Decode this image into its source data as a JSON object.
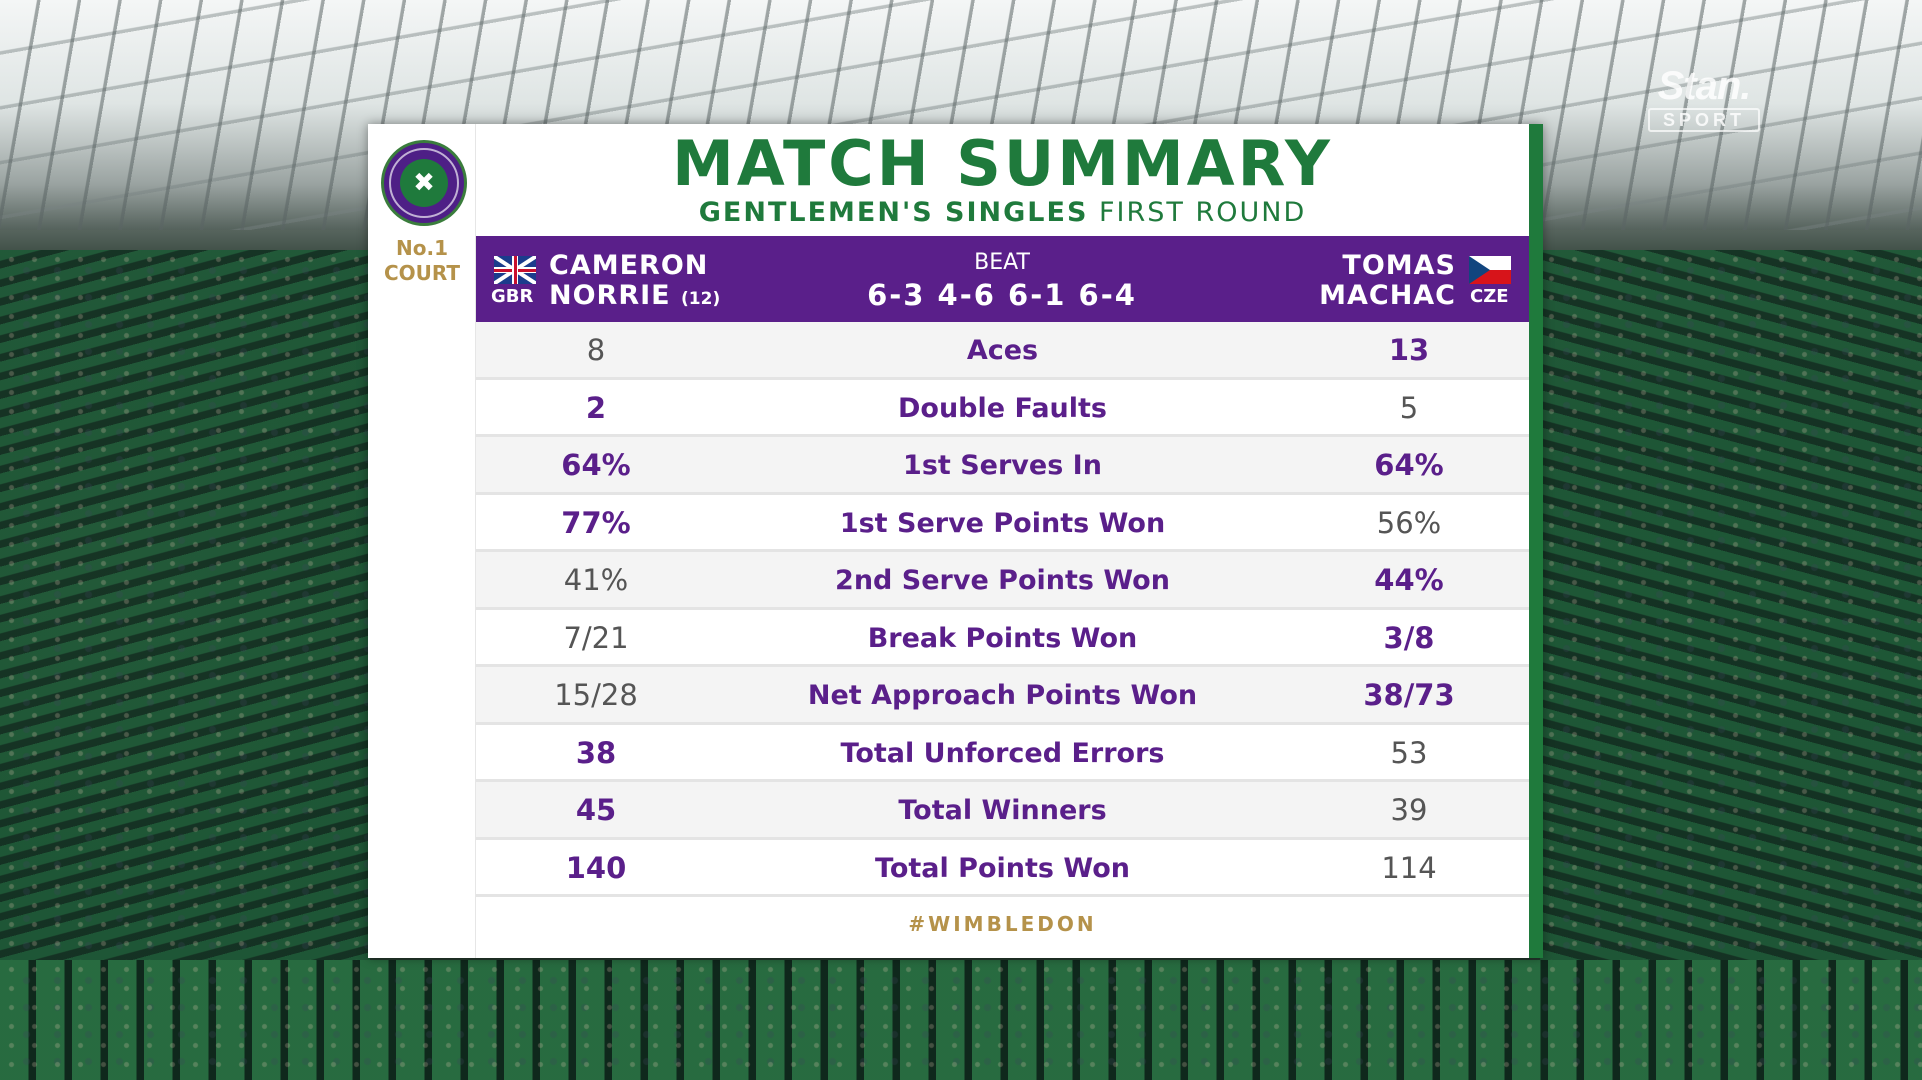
{
  "broadcaster": {
    "brand": "Stan.",
    "sub": "SPORT"
  },
  "court": {
    "line1": "No.1",
    "line2": "COURT"
  },
  "title": "MATCH SUMMARY",
  "subtitle": {
    "event": "GENTLEMEN'S SINGLES",
    "round": "FIRST ROUND"
  },
  "match": {
    "player1": {
      "first": "CAMERON",
      "last": "NORRIE",
      "seed": "(12)",
      "country": "GBR",
      "flag_icon": "uk-flag-icon"
    },
    "player2": {
      "first": "TOMAS",
      "last": "MACHAC",
      "country": "CZE",
      "flag_icon": "czech-flag-icon"
    },
    "result": "BEAT",
    "score": "6-3 4-6 6-1 6-4"
  },
  "stats": [
    {
      "label": "Aces",
      "p1": "8",
      "p2": "13",
      "leader": "p2"
    },
    {
      "label": "Double Faults",
      "p1": "2",
      "p2": "5",
      "leader": "p1"
    },
    {
      "label": "1st Serves In",
      "p1": "64%",
      "p2": "64%",
      "leader": "both"
    },
    {
      "label": "1st Serve Points Won",
      "p1": "77%",
      "p2": "56%",
      "leader": "p1"
    },
    {
      "label": "2nd Serve Points Won",
      "p1": "41%",
      "p2": "44%",
      "leader": "p2"
    },
    {
      "label": "Break Points Won",
      "p1": "7/21",
      "p2": "3/8",
      "leader": "p2"
    },
    {
      "label": "Net Approach Points Won",
      "p1": "15/28",
      "p2": "38/73",
      "leader": "p2"
    },
    {
      "label": "Total Unforced Errors",
      "p1": "38",
      "p2": "53",
      "leader": "p1"
    },
    {
      "label": "Total Winners",
      "p1": "45",
      "p2": "39",
      "leader": "p1"
    },
    {
      "label": "Total Points Won",
      "p1": "140",
      "p2": "114",
      "leader": "p1"
    }
  ],
  "hashtag": "#WIMBLEDON",
  "colors": {
    "purple": "#5a1f8a",
    "green": "#1f7a3c",
    "gold": "#b5924a"
  }
}
